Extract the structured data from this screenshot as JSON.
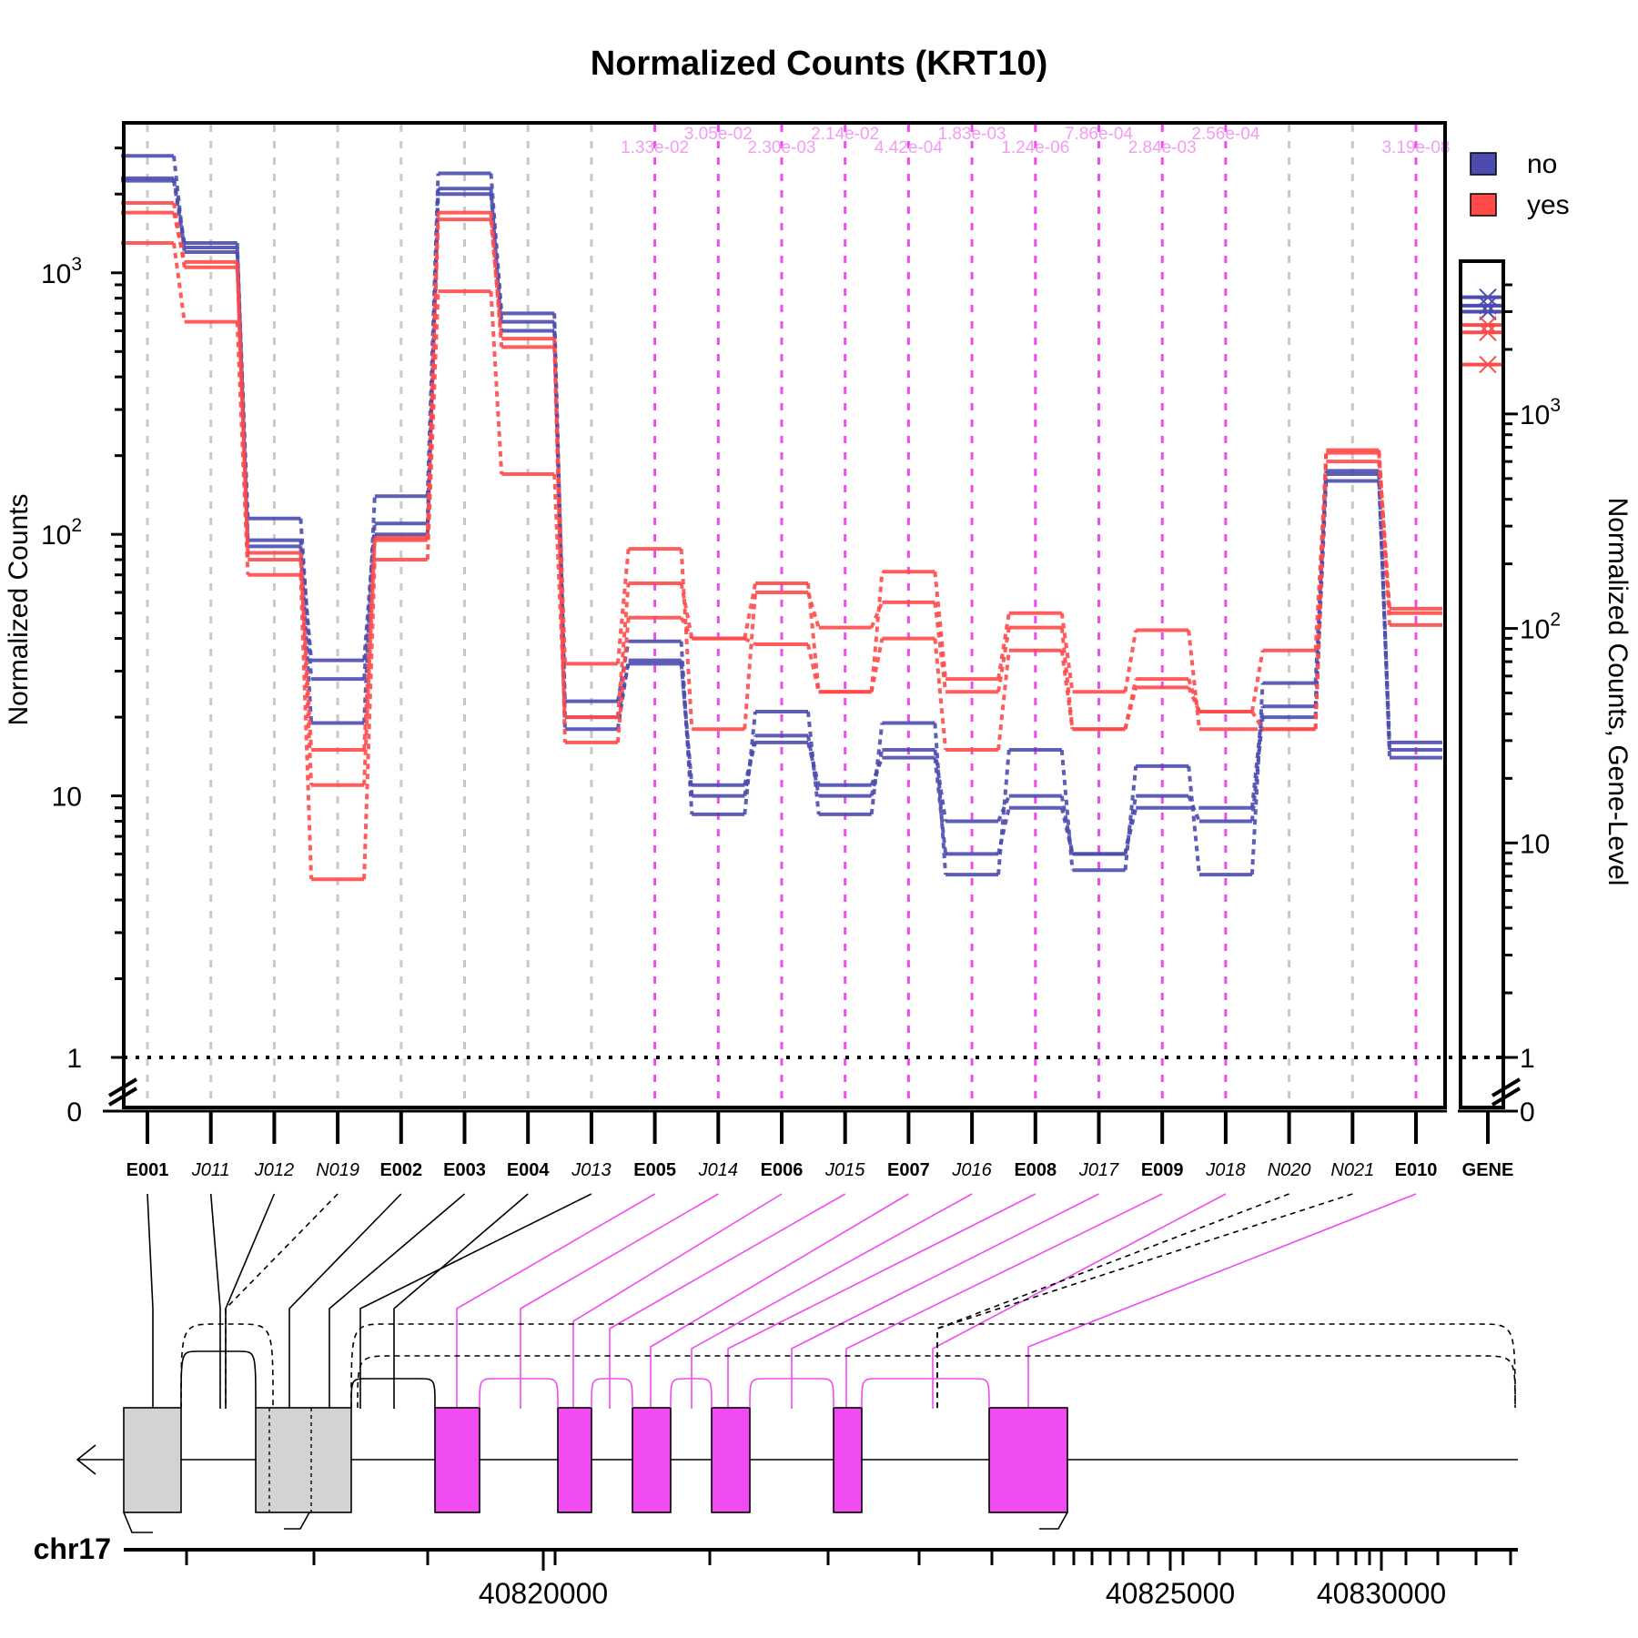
{
  "chart_data": {
    "type": "line",
    "title": "Normalized Counts (KRT10)",
    "ylabel": "Normalized Counts",
    "ylabel_right": "Normalized Counts, Gene-Level",
    "scale": "log",
    "y_ticks_major": [
      "1",
      "10",
      "10^2",
      "10^3"
    ],
    "y_zero_label": "0",
    "gene_y_ticks_major": [
      "1",
      "10",
      "10^2",
      "10^3"
    ],
    "gene_y_zero_label": "0",
    "legend": [
      {
        "label": "no",
        "color": "#4C4CB0"
      },
      {
        "label": "yes",
        "color": "#FF4A4A"
      }
    ],
    "legend_position": "top-right",
    "colors": {
      "no": "#4C4CB0",
      "yes": "#FF4A4A",
      "significant": "#F04BF0",
      "pvalue_text": "#F29CF2",
      "grid": "#C8C8C8"
    },
    "features": [
      {
        "id": "E001",
        "kind": "exon",
        "pvalue": ""
      },
      {
        "id": "J011",
        "kind": "junction",
        "pvalue": ""
      },
      {
        "id": "J012",
        "kind": "junction",
        "pvalue": ""
      },
      {
        "id": "N019",
        "kind": "novel",
        "pvalue": ""
      },
      {
        "id": "E002",
        "kind": "exon",
        "pvalue": ""
      },
      {
        "id": "E003",
        "kind": "exon",
        "pvalue": ""
      },
      {
        "id": "E004",
        "kind": "exon",
        "pvalue": ""
      },
      {
        "id": "J013",
        "kind": "junction",
        "pvalue": ""
      },
      {
        "id": "E005",
        "kind": "exon",
        "pvalue": "1.33e-02"
      },
      {
        "id": "J014",
        "kind": "junction",
        "pvalue": "3.05e-02"
      },
      {
        "id": "E006",
        "kind": "exon",
        "pvalue": "2.30e-03"
      },
      {
        "id": "J015",
        "kind": "junction",
        "pvalue": "2.14e-02"
      },
      {
        "id": "E007",
        "kind": "exon",
        "pvalue": "4.42e-04"
      },
      {
        "id": "J016",
        "kind": "junction",
        "pvalue": "1.83e-03"
      },
      {
        "id": "E008",
        "kind": "exon",
        "pvalue": "1.24e-06"
      },
      {
        "id": "J017",
        "kind": "junction",
        "pvalue": "7.86e-04"
      },
      {
        "id": "E009",
        "kind": "exon",
        "pvalue": "2.84e-03"
      },
      {
        "id": "J018",
        "kind": "junction",
        "pvalue": "2.56e-04"
      },
      {
        "id": "N020",
        "kind": "novel",
        "pvalue": ""
      },
      {
        "id": "N021",
        "kind": "novel",
        "pvalue": ""
      },
      {
        "id": "E010",
        "kind": "exon",
        "pvalue": "3.19e-08"
      }
    ],
    "gene_label": "GENE",
    "series": [
      {
        "name": "no",
        "values": [
          2800,
          1200,
          115,
          28,
          100,
          2000,
          650,
          18,
          33,
          10,
          17,
          10,
          15,
          8,
          10,
          6,
          10,
          8,
          20,
          160,
          16
        ]
      },
      {
        "name": "no",
        "values": [
          2300,
          1300,
          95,
          33,
          110,
          2100,
          600,
          20,
          32,
          11,
          16,
          11,
          14,
          6,
          9,
          6,
          9,
          9,
          22,
          170,
          15
        ]
      },
      {
        "name": "no",
        "values": [
          2250,
          1250,
          90,
          19,
          140,
          2400,
          700,
          23,
          39,
          8.5,
          21,
          8.5,
          19,
          5,
          15,
          5.2,
          13,
          5,
          27,
          175,
          14
        ]
      },
      {
        "name": "yes",
        "values": [
          1300,
          650,
          70,
          4.8,
          80,
          850,
          170,
          20,
          65,
          40,
          38,
          25,
          40,
          15,
          36,
          18,
          28,
          21,
          36,
          190,
          50
        ]
      },
      {
        "name": "yes",
        "values": [
          1700,
          1100,
          80,
          15,
          97,
          1700,
          520,
          32,
          88,
          18,
          60,
          44,
          55,
          25,
          44,
          18,
          26,
          21,
          18,
          210,
          45
        ]
      },
      {
        "name": "yes",
        "values": [
          1850,
          1050,
          85,
          11,
          95,
          1600,
          560,
          16,
          48,
          40,
          65,
          25,
          72,
          28,
          50,
          25,
          43,
          18,
          18,
          205,
          52
        ]
      }
    ],
    "gene_level": {
      "no": [
        3500,
        3000,
        3200
      ],
      "yes": [
        1700,
        2600,
        2400
      ]
    },
    "chromosome": "chr17",
    "x_ticks": [
      "40820000",
      "40825000",
      "40830000"
    ]
  }
}
